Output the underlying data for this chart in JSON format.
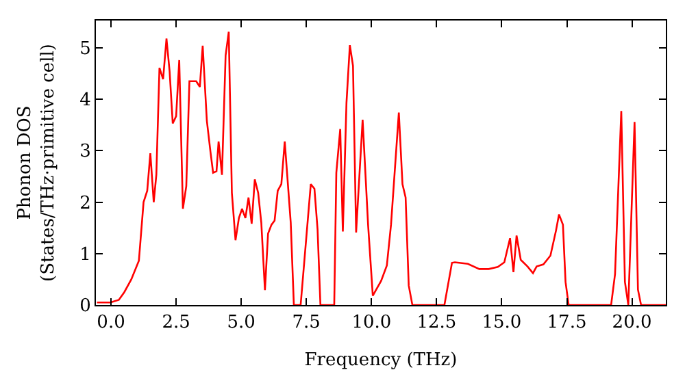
{
  "chart_data": {
    "type": "line",
    "xlabel": "Frequency (THz)",
    "ylabel": "Phonon DOS\n(States/THz·primitive cell)",
    "x": [
      -0.54,
      -0.02,
      0.3,
      0.51,
      0.78,
      1.07,
      1.25,
      1.39,
      1.51,
      1.64,
      1.74,
      1.86,
      2.0,
      2.13,
      2.25,
      2.37,
      2.5,
      2.62,
      2.76,
      2.89,
      3.01,
      3.27,
      3.41,
      3.52,
      3.68,
      3.82,
      3.92,
      4.05,
      4.13,
      4.26,
      4.4,
      4.52,
      4.64,
      4.78,
      4.91,
      5.03,
      5.16,
      5.28,
      5.4,
      5.52,
      5.65,
      5.77,
      5.91,
      6.03,
      6.16,
      6.28,
      6.4,
      6.54,
      6.67,
      6.9,
      7.02,
      7.28,
      7.67,
      7.81,
      7.93,
      8.04,
      8.57,
      8.65,
      8.8,
      8.9,
      9.04,
      9.17,
      9.29,
      9.41,
      9.66,
      9.87,
      10.05,
      10.37,
      10.59,
      10.75,
      11.05,
      11.19,
      11.31,
      11.43,
      11.57,
      12.8,
      13.09,
      13.2,
      13.7,
      14.14,
      14.5,
      14.85,
      15.1,
      15.32,
      15.45,
      15.57,
      15.73,
      15.99,
      16.2,
      16.34,
      16.6,
      16.87,
      17.08,
      17.2,
      17.35,
      17.45,
      17.57,
      19.2,
      19.35,
      19.59,
      19.73,
      19.86,
      20.1,
      20.23,
      20.35,
      21.3
    ],
    "series": [
      {
        "color": "#ff0000",
        "values": [
          0.05,
          0.05,
          0.1,
          0.25,
          0.5,
          0.86,
          2.0,
          2.22,
          2.95,
          2.0,
          2.53,
          4.61,
          4.39,
          5.18,
          4.54,
          3.53,
          3.67,
          4.76,
          1.87,
          2.31,
          4.35,
          4.35,
          4.24,
          5.04,
          3.58,
          2.97,
          2.57,
          2.6,
          3.18,
          2.53,
          4.85,
          5.31,
          2.18,
          1.26,
          1.69,
          1.87,
          1.69,
          2.09,
          1.58,
          2.44,
          2.18,
          1.6,
          0.29,
          1.39,
          1.56,
          1.64,
          2.22,
          2.35,
          3.18,
          1.6,
          0,
          0,
          2.35,
          2.26,
          1.47,
          0,
          0,
          2.57,
          3.42,
          1.43,
          3.93,
          5.05,
          4.65,
          1.41,
          3.6,
          1.56,
          0.18,
          0.47,
          0.77,
          1.56,
          3.74,
          2.35,
          2.09,
          0.38,
          0,
          0,
          0.82,
          0.83,
          0.8,
          0.7,
          0.7,
          0.74,
          0.83,
          1.3,
          0.64,
          1.35,
          0.88,
          0.75,
          0.62,
          0.75,
          0.79,
          0.96,
          1.44,
          1.76,
          1.56,
          0.45,
          0,
          0,
          0.6,
          3.77,
          0.45,
          0,
          3.56,
          0.3,
          0,
          0
        ]
      }
    ],
    "xlim": [
      -0.58,
      21.3
    ],
    "ylim": [
      0,
      5.53
    ],
    "xticks": [
      {
        "value": 0,
        "label": "0.0"
      },
      {
        "value": 2.5,
        "label": "2.5"
      },
      {
        "value": 5,
        "label": "5.0"
      },
      {
        "value": 7.5,
        "label": "7.5"
      },
      {
        "value": 10,
        "label": "10.0"
      },
      {
        "value": 12.5,
        "label": "12.5"
      },
      {
        "value": 15,
        "label": "15.0"
      },
      {
        "value": 17.5,
        "label": "17.5"
      },
      {
        "value": 20,
        "label": "20.0"
      }
    ],
    "yticks": [
      0,
      1,
      2,
      3,
      4,
      5
    ],
    "marker": "none",
    "line_style": "solid"
  }
}
